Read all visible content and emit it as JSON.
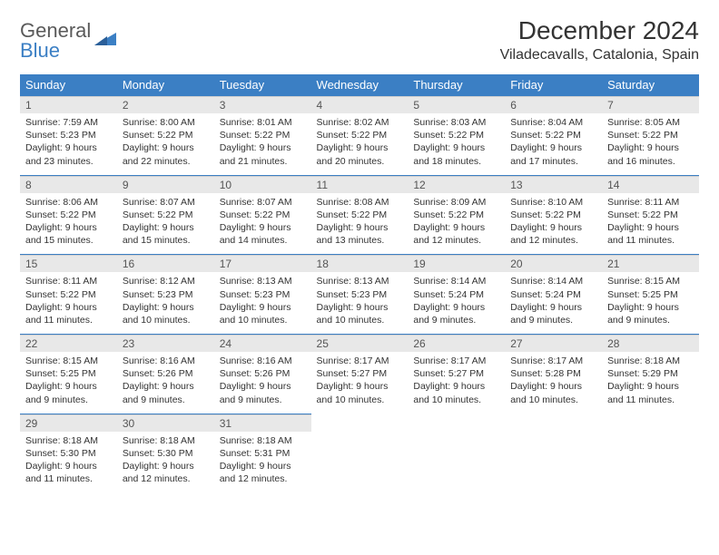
{
  "brand": {
    "part1": "General",
    "part2": "Blue"
  },
  "title": "December 2024",
  "location": "Viladecavalls, Catalonia, Spain",
  "colors": {
    "accent": "#3b7fc4",
    "header_bg": "#3b7fc4",
    "header_text": "#ffffff",
    "daynum_bg": "#e8e8e8",
    "text": "#333333"
  },
  "weekdays": [
    "Sunday",
    "Monday",
    "Tuesday",
    "Wednesday",
    "Thursday",
    "Friday",
    "Saturday"
  ],
  "weeks": [
    [
      {
        "n": "1",
        "sr": "Sunrise: 7:59 AM",
        "ss": "Sunset: 5:23 PM",
        "dl": "Daylight: 9 hours and 23 minutes."
      },
      {
        "n": "2",
        "sr": "Sunrise: 8:00 AM",
        "ss": "Sunset: 5:22 PM",
        "dl": "Daylight: 9 hours and 22 minutes."
      },
      {
        "n": "3",
        "sr": "Sunrise: 8:01 AM",
        "ss": "Sunset: 5:22 PM",
        "dl": "Daylight: 9 hours and 21 minutes."
      },
      {
        "n": "4",
        "sr": "Sunrise: 8:02 AM",
        "ss": "Sunset: 5:22 PM",
        "dl": "Daylight: 9 hours and 20 minutes."
      },
      {
        "n": "5",
        "sr": "Sunrise: 8:03 AM",
        "ss": "Sunset: 5:22 PM",
        "dl": "Daylight: 9 hours and 18 minutes."
      },
      {
        "n": "6",
        "sr": "Sunrise: 8:04 AM",
        "ss": "Sunset: 5:22 PM",
        "dl": "Daylight: 9 hours and 17 minutes."
      },
      {
        "n": "7",
        "sr": "Sunrise: 8:05 AM",
        "ss": "Sunset: 5:22 PM",
        "dl": "Daylight: 9 hours and 16 minutes."
      }
    ],
    [
      {
        "n": "8",
        "sr": "Sunrise: 8:06 AM",
        "ss": "Sunset: 5:22 PM",
        "dl": "Daylight: 9 hours and 15 minutes."
      },
      {
        "n": "9",
        "sr": "Sunrise: 8:07 AM",
        "ss": "Sunset: 5:22 PM",
        "dl": "Daylight: 9 hours and 15 minutes."
      },
      {
        "n": "10",
        "sr": "Sunrise: 8:07 AM",
        "ss": "Sunset: 5:22 PM",
        "dl": "Daylight: 9 hours and 14 minutes."
      },
      {
        "n": "11",
        "sr": "Sunrise: 8:08 AM",
        "ss": "Sunset: 5:22 PM",
        "dl": "Daylight: 9 hours and 13 minutes."
      },
      {
        "n": "12",
        "sr": "Sunrise: 8:09 AM",
        "ss": "Sunset: 5:22 PM",
        "dl": "Daylight: 9 hours and 12 minutes."
      },
      {
        "n": "13",
        "sr": "Sunrise: 8:10 AM",
        "ss": "Sunset: 5:22 PM",
        "dl": "Daylight: 9 hours and 12 minutes."
      },
      {
        "n": "14",
        "sr": "Sunrise: 8:11 AM",
        "ss": "Sunset: 5:22 PM",
        "dl": "Daylight: 9 hours and 11 minutes."
      }
    ],
    [
      {
        "n": "15",
        "sr": "Sunrise: 8:11 AM",
        "ss": "Sunset: 5:22 PM",
        "dl": "Daylight: 9 hours and 11 minutes."
      },
      {
        "n": "16",
        "sr": "Sunrise: 8:12 AM",
        "ss": "Sunset: 5:23 PM",
        "dl": "Daylight: 9 hours and 10 minutes."
      },
      {
        "n": "17",
        "sr": "Sunrise: 8:13 AM",
        "ss": "Sunset: 5:23 PM",
        "dl": "Daylight: 9 hours and 10 minutes."
      },
      {
        "n": "18",
        "sr": "Sunrise: 8:13 AM",
        "ss": "Sunset: 5:23 PM",
        "dl": "Daylight: 9 hours and 10 minutes."
      },
      {
        "n": "19",
        "sr": "Sunrise: 8:14 AM",
        "ss": "Sunset: 5:24 PM",
        "dl": "Daylight: 9 hours and 9 minutes."
      },
      {
        "n": "20",
        "sr": "Sunrise: 8:14 AM",
        "ss": "Sunset: 5:24 PM",
        "dl": "Daylight: 9 hours and 9 minutes."
      },
      {
        "n": "21",
        "sr": "Sunrise: 8:15 AM",
        "ss": "Sunset: 5:25 PM",
        "dl": "Daylight: 9 hours and 9 minutes."
      }
    ],
    [
      {
        "n": "22",
        "sr": "Sunrise: 8:15 AM",
        "ss": "Sunset: 5:25 PM",
        "dl": "Daylight: 9 hours and 9 minutes."
      },
      {
        "n": "23",
        "sr": "Sunrise: 8:16 AM",
        "ss": "Sunset: 5:26 PM",
        "dl": "Daylight: 9 hours and 9 minutes."
      },
      {
        "n": "24",
        "sr": "Sunrise: 8:16 AM",
        "ss": "Sunset: 5:26 PM",
        "dl": "Daylight: 9 hours and 9 minutes."
      },
      {
        "n": "25",
        "sr": "Sunrise: 8:17 AM",
        "ss": "Sunset: 5:27 PM",
        "dl": "Daylight: 9 hours and 10 minutes."
      },
      {
        "n": "26",
        "sr": "Sunrise: 8:17 AM",
        "ss": "Sunset: 5:27 PM",
        "dl": "Daylight: 9 hours and 10 minutes."
      },
      {
        "n": "27",
        "sr": "Sunrise: 8:17 AM",
        "ss": "Sunset: 5:28 PM",
        "dl": "Daylight: 9 hours and 10 minutes."
      },
      {
        "n": "28",
        "sr": "Sunrise: 8:18 AM",
        "ss": "Sunset: 5:29 PM",
        "dl": "Daylight: 9 hours and 11 minutes."
      }
    ],
    [
      {
        "n": "29",
        "sr": "Sunrise: 8:18 AM",
        "ss": "Sunset: 5:30 PM",
        "dl": "Daylight: 9 hours and 11 minutes."
      },
      {
        "n": "30",
        "sr": "Sunrise: 8:18 AM",
        "ss": "Sunset: 5:30 PM",
        "dl": "Daylight: 9 hours and 12 minutes."
      },
      {
        "n": "31",
        "sr": "Sunrise: 8:18 AM",
        "ss": "Sunset: 5:31 PM",
        "dl": "Daylight: 9 hours and 12 minutes."
      },
      null,
      null,
      null,
      null
    ]
  ]
}
